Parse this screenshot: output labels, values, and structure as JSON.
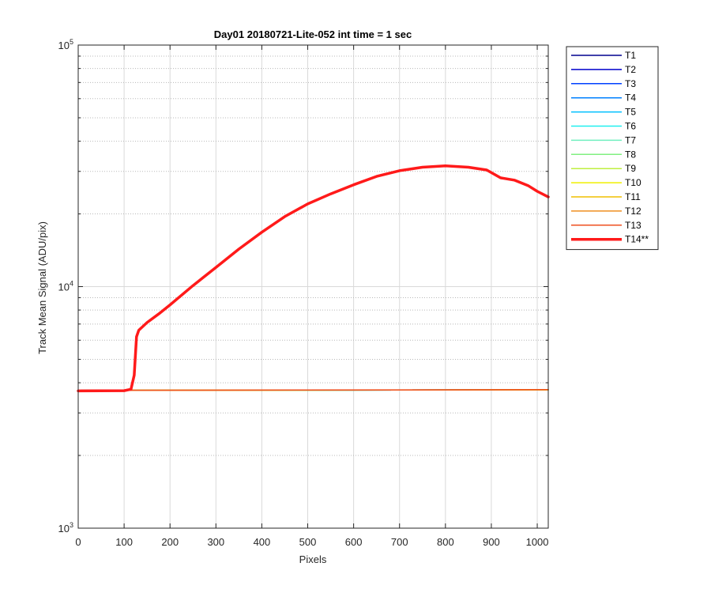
{
  "chart_data": {
    "type": "line",
    "title": "Day01 20180721-Lite-052 int time = 1 sec",
    "xlabel": "Pixels",
    "ylabel": "Track Mean Signal (ADU/pix)",
    "xlim": [
      0,
      1024
    ],
    "ylim": [
      1000,
      100000
    ],
    "yscale": "log",
    "grid": true,
    "legend_position": "outside-right",
    "x_ticks": [
      0,
      100,
      200,
      300,
      400,
      500,
      600,
      700,
      800,
      900,
      1000
    ],
    "y_ticks": [
      {
        "value": 1000,
        "base": "10",
        "exp": "3"
      },
      {
        "value": 10000,
        "base": "10",
        "exp": "4"
      },
      {
        "value": 100000,
        "base": "10",
        "exp": "5"
      }
    ],
    "series": [
      {
        "name": "T1",
        "color": "#00008f",
        "width": 1.5,
        "x": [
          0,
          1024
        ],
        "y": [
          3720,
          3740
        ]
      },
      {
        "name": "T2",
        "color": "#0000cc",
        "width": 1.5,
        "x": [
          0,
          1024
        ],
        "y": [
          3720,
          3740
        ]
      },
      {
        "name": "T3",
        "color": "#0040ff",
        "width": 1.5,
        "x": [
          0,
          1024
        ],
        "y": [
          3720,
          3740
        ]
      },
      {
        "name": "T4",
        "color": "#0080ff",
        "width": 1.5,
        "x": [
          0,
          1024
        ],
        "y": [
          3720,
          3740
        ]
      },
      {
        "name": "T5",
        "color": "#00bfff",
        "width": 1.5,
        "x": [
          0,
          1024
        ],
        "y": [
          3720,
          3740
        ]
      },
      {
        "name": "T6",
        "color": "#20efef",
        "width": 1.5,
        "x": [
          0,
          1024
        ],
        "y": [
          3720,
          3740
        ]
      },
      {
        "name": "T7",
        "color": "#70efbf",
        "width": 1.5,
        "x": [
          0,
          1024
        ],
        "y": [
          3720,
          3740
        ]
      },
      {
        "name": "T8",
        "color": "#80ef80",
        "width": 1.5,
        "x": [
          0,
          1024
        ],
        "y": [
          3720,
          3740
        ]
      },
      {
        "name": "T9",
        "color": "#bfef40",
        "width": 1.5,
        "x": [
          0,
          1024
        ],
        "y": [
          3720,
          3740
        ]
      },
      {
        "name": "T10",
        "color": "#efef00",
        "width": 1.5,
        "x": [
          0,
          1024
        ],
        "y": [
          3720,
          3740
        ]
      },
      {
        "name": "T11",
        "color": "#efbf00",
        "width": 1.5,
        "x": [
          0,
          1024
        ],
        "y": [
          3720,
          3740
        ]
      },
      {
        "name": "T12",
        "color": "#ef8f20",
        "width": 1.5,
        "x": [
          0,
          1024
        ],
        "y": [
          3720,
          3740
        ]
      },
      {
        "name": "T13",
        "color": "#ef5020",
        "width": 1.5,
        "x": [
          0,
          1024
        ],
        "y": [
          3720,
          3745
        ]
      },
      {
        "name": "T14**",
        "color": "#ff1a1a",
        "width": 3.5,
        "x": [
          0,
          100,
          115,
          122,
          127,
          132,
          150,
          175,
          200,
          250,
          300,
          350,
          400,
          450,
          500,
          550,
          600,
          650,
          700,
          750,
          800,
          850,
          890,
          920,
          950,
          980,
          1000,
          1024
        ],
        "y": [
          3700,
          3710,
          3760,
          4300,
          6200,
          6600,
          7100,
          7700,
          8400,
          10100,
          12000,
          14300,
          16800,
          19500,
          22000,
          24200,
          26400,
          28600,
          30200,
          31200,
          31600,
          31200,
          30400,
          28200,
          27600,
          26200,
          24800,
          23500
        ]
      }
    ]
  }
}
